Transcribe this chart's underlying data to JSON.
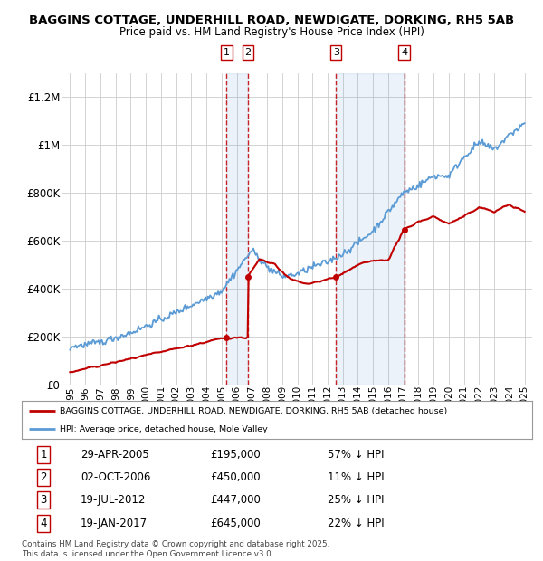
{
  "title_line1": "BAGGINS COTTAGE, UNDERHILL ROAD, NEWDIGATE, DORKING, RH5 5AB",
  "title_line2": "Price paid vs. HM Land Registry's House Price Index (HPI)",
  "hpi_color": "#5b9bd5",
  "price_color": "#c00000",
  "background_color": "#ffffff",
  "grid_color": "#cccccc",
  "transactions": [
    {
      "num": 1,
      "date": "29-APR-2005",
      "date_x": 2005.33,
      "price": 195000,
      "label": "£195,000",
      "pct": "57% ↓ HPI"
    },
    {
      "num": 2,
      "date": "02-OCT-2006",
      "date_x": 2006.75,
      "price": 450000,
      "label": "£450,000",
      "pct": "11% ↓ HPI"
    },
    {
      "num": 3,
      "date": "19-JUL-2012",
      "date_x": 2012.55,
      "price": 447000,
      "label": "£447,000",
      "pct": "25% ↓ HPI"
    },
    {
      "num": 4,
      "date": "19-JAN-2017",
      "date_x": 2017.05,
      "price": 645000,
      "label": "£645,000",
      "pct": "22% ↓ HPI"
    }
  ],
  "xlim": [
    1994.5,
    2025.5
  ],
  "ylim": [
    0,
    1300000
  ],
  "yticks": [
    0,
    200000,
    400000,
    600000,
    800000,
    1000000,
    1200000
  ],
  "ytick_labels": [
    "£0",
    "£200K",
    "£400K",
    "£600K",
    "£800K",
    "£1M",
    "£1.2M"
  ],
  "xticks": [
    1995,
    1996,
    1997,
    1998,
    1999,
    2000,
    2001,
    2002,
    2003,
    2004,
    2005,
    2006,
    2007,
    2008,
    2009,
    2010,
    2011,
    2012,
    2013,
    2014,
    2015,
    2016,
    2017,
    2018,
    2019,
    2020,
    2021,
    2022,
    2023,
    2024,
    2025
  ],
  "legend_label_price": "BAGGINS COTTAGE, UNDERHILL ROAD, NEWDIGATE, DORKING, RH5 5AB (detached house)",
  "legend_label_hpi": "HPI: Average price, detached house, Mole Valley",
  "footer": "Contains HM Land Registry data © Crown copyright and database right 2025.\nThis data is licensed under the Open Government Licence v3.0.",
  "hpi_anchors_x": [
    1995,
    1997,
    1999,
    2001,
    2003,
    2005,
    2007,
    2008,
    2009,
    2010,
    2011,
    2012,
    2013,
    2014,
    2015,
    2016,
    2017,
    2018,
    2019,
    2020,
    2021,
    2022,
    2023,
    2024,
    2025
  ],
  "hpi_anchors_y": [
    155000,
    175000,
    215000,
    270000,
    330000,
    390000,
    560000,
    490000,
    450000,
    460000,
    490000,
    510000,
    545000,
    590000,
    640000,
    720000,
    800000,
    830000,
    870000,
    870000,
    950000,
    1010000,
    980000,
    1040000,
    1090000
  ],
  "price_anchors_x": [
    1995,
    2005.32,
    2005.33,
    2006.74,
    2006.75,
    2007.5,
    2008.5,
    2009.5,
    2010.5,
    2011.5,
    2012.54,
    2012.55,
    2013.5,
    2014.5,
    2016.0,
    2017.04,
    2017.05,
    2018,
    2019,
    2020,
    2021,
    2022,
    2023,
    2024,
    2025
  ],
  "price_anchors_y": [
    50000,
    195000,
    195000,
    195000,
    450000,
    520000,
    500000,
    440000,
    420000,
    430000,
    447000,
    447000,
    480000,
    510000,
    520000,
    645000,
    645000,
    680000,
    700000,
    670000,
    700000,
    740000,
    720000,
    750000,
    720000
  ],
  "hpi_noise_std": 7000,
  "price_noise_std": 4000,
  "random_seed": 42
}
